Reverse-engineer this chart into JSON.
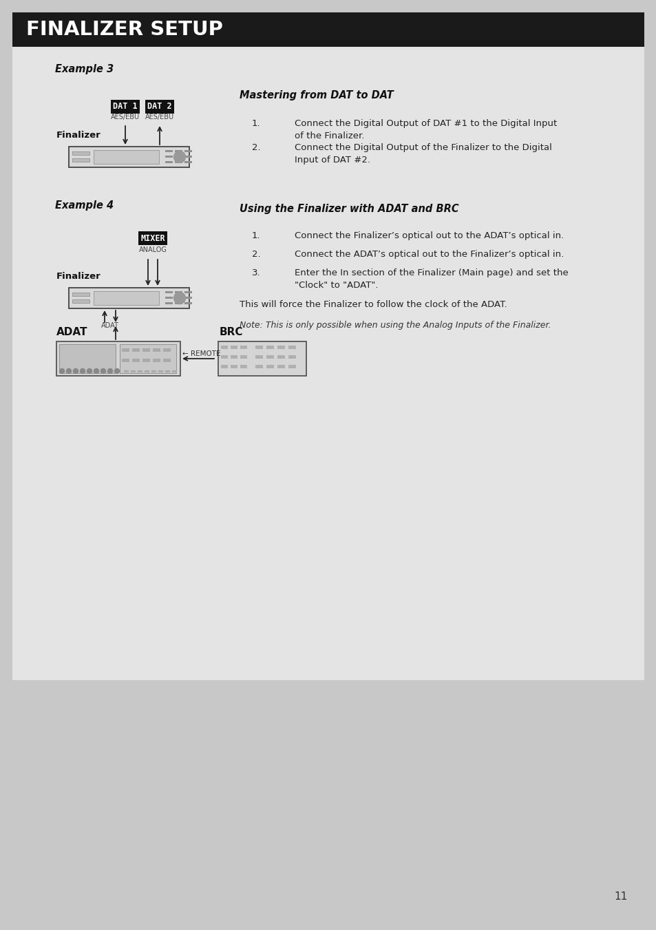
{
  "title": "FINALIZER SETUP",
  "title_bg": "#1a1a1a",
  "title_fg": "#ffffff",
  "page_bg": "#c8c8c8",
  "content_bg": "#e4e4e4",
  "page_number": "11",
  "example3_label": "Example 3",
  "example3_text_title": "Mastering from DAT to DAT",
  "example3_items": [
    "Connect the Digital Output of DAT #1 to the Digital Input\nof the Finalizer.",
    "Connect the Digital Output of the Finalizer to the Digital\nInput of DAT #2."
  ],
  "example4_label": "Example 4",
  "example4_text_title": "Using the Finalizer with ADAT and BRC",
  "example4_items": [
    "Connect the Finalizer’s optical out to the ADAT’s optical in.",
    "Connect the ADAT’s optical out to the Finalizer’s optical in.",
    "Enter the In section of the Finalizer (Main page) and set the\n\"Clock\" to \"ADAT\"."
  ],
  "example4_note1": "This will force the Finalizer to follow the clock of the ADAT.",
  "example4_note2": "Note: This is only possible when using the Analog Inputs of the Finalizer."
}
